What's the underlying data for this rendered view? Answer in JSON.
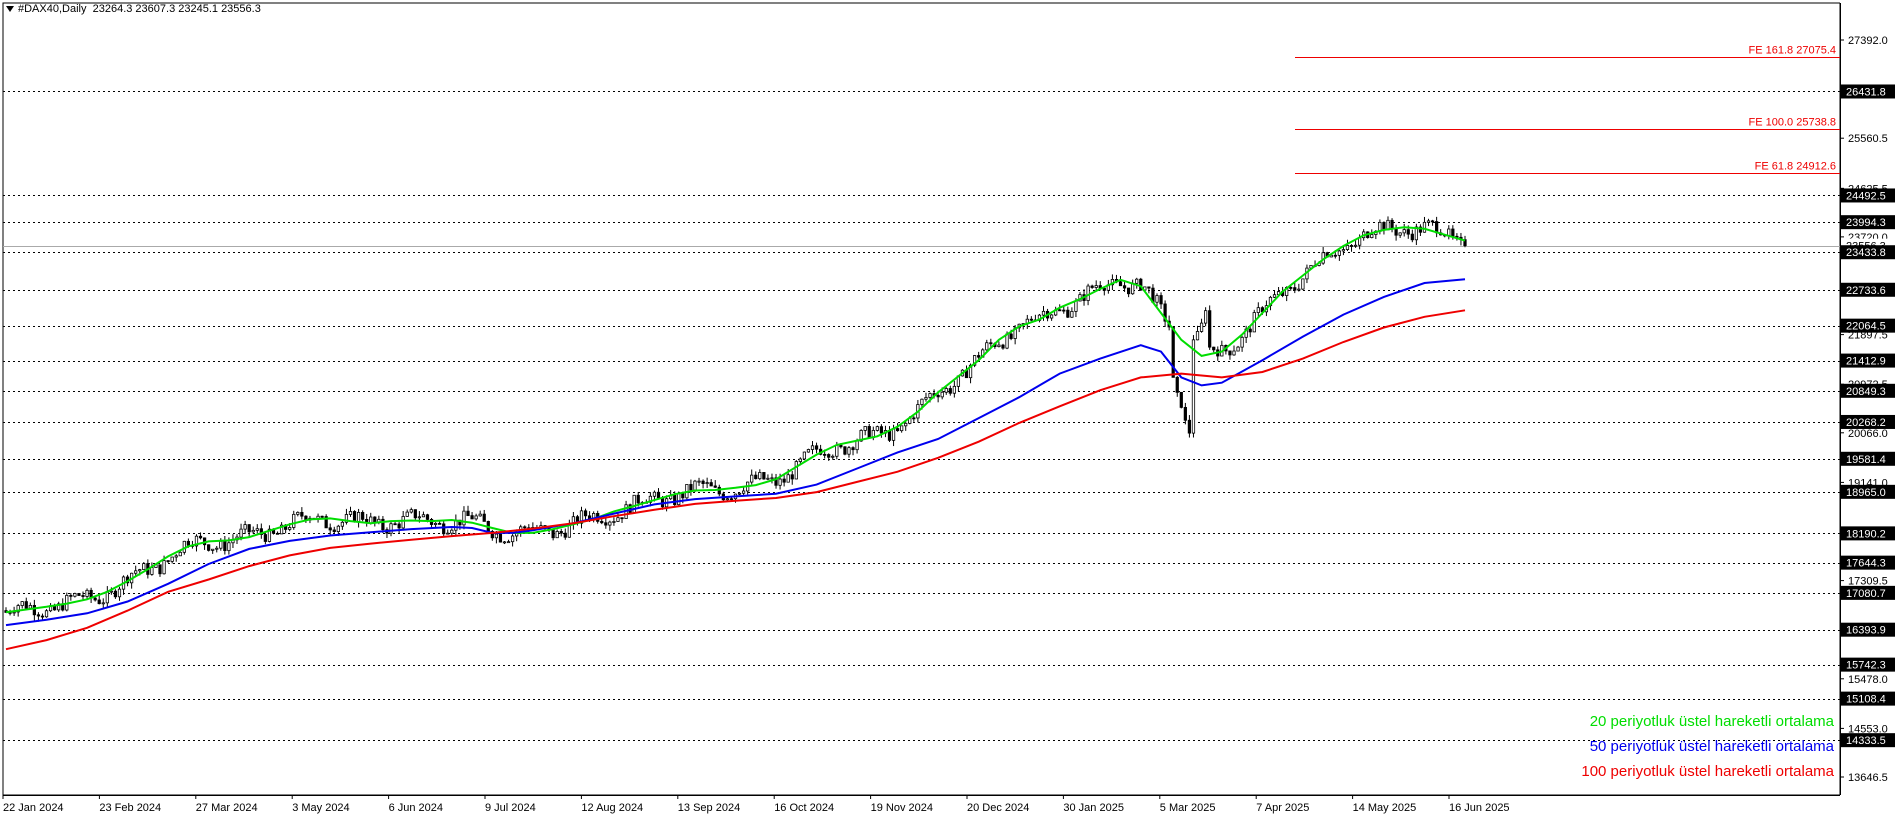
{
  "header": {
    "symbol": "#DAX40,Daily",
    "ohlc": "23264.3 23607.3 23245.1 23556.3"
  },
  "colors": {
    "ema20": "#00dd00",
    "ema50": "#0000ee",
    "ema100": "#ee0000",
    "fib": "#ee0000",
    "grid": "#000000",
    "bull": "#000000",
    "bear": "#000000"
  },
  "chart_data": {
    "type": "candlestick",
    "instrument": "#DAX40",
    "timeframe": "Daily",
    "ylim": [
      13300,
      28100
    ],
    "y_ticks": [
      "27392.0",
      "26431.8",
      "25560.5",
      "24625.5",
      "24492.5",
      "23994.3",
      "23720.0",
      "23556.3",
      "23433.8",
      "22733.6",
      "22064.5",
      "21897.5",
      "21412.9",
      "20972.5",
      "20849.3",
      "20268.2",
      "20066.0",
      "19581.4",
      "19141.0",
      "18965.0",
      "18190.2",
      "17644.3",
      "17309.5",
      "17080.7",
      "16393.9",
      "15742.3",
      "15478.0",
      "15108.4",
      "14553.0",
      "14333.5",
      "13646.5"
    ],
    "x_ticks": [
      "22 Jan 2024",
      "23 Feb 2024",
      "27 Mar 2024",
      "3 May 2024",
      "6 Jun 2024",
      "9 Jul 2024",
      "12 Aug 2024",
      "13 Sep 2024",
      "16 Oct 2024",
      "19 Nov 2024",
      "20 Dec 2024",
      "30 Jan 2025",
      "5 Mar 2025",
      "7 Apr 2025",
      "14 May 2025",
      "16 Jun 2025"
    ],
    "horizontal_levels": [
      {
        "label": "26431.8",
        "value": 26431.8
      },
      {
        "label": "24492.5",
        "value": 24492.5
      },
      {
        "label": "23994.3",
        "value": 23994.3
      },
      {
        "label": "23433.8",
        "value": 23433.8
      },
      {
        "label": "22733.6",
        "value": 22733.6
      },
      {
        "label": "22064.5",
        "value": 22064.5
      },
      {
        "label": "21412.9",
        "value": 21412.9
      },
      {
        "label": "20849.3",
        "value": 20849.3
      },
      {
        "label": "20268.2",
        "value": 20268.2
      },
      {
        "label": "19581.4",
        "value": 19581.4
      },
      {
        "label": "18965.0",
        "value": 18965.0
      },
      {
        "label": "18190.2",
        "value": 18190.2
      },
      {
        "label": "17644.3",
        "value": 17644.3
      },
      {
        "label": "17080.7",
        "value": 17080.7
      },
      {
        "label": "16393.9",
        "value": 16393.9
      },
      {
        "label": "15742.3",
        "value": 15742.3
      },
      {
        "label": "15108.4",
        "value": 15108.4
      },
      {
        "label": "14333.5",
        "value": 14333.5
      }
    ],
    "current_price": {
      "label": "23556.3",
      "value": 23556.3
    },
    "fib_levels": [
      {
        "label": "FE 161.8 27075.4",
        "value": 27075.4
      },
      {
        "label": "FE 100.0 25738.8",
        "value": 25738.8
      },
      {
        "label": "FE 61.8 24912.6",
        "value": 24912.6
      }
    ],
    "series": [
      {
        "name": "20 periyotluk üstel hareketli ortalama",
        "color": "#00dd00",
        "x": [
          0,
          5,
          10,
          15,
          20,
          25,
          30,
          35,
          40,
          45,
          50,
          55,
          60,
          65,
          70,
          75,
          80,
          85,
          90,
          95,
          100,
          105,
          110,
          115,
          120,
          125,
          130,
          135,
          140,
          145,
          150,
          155,
          160,
          165,
          170,
          175,
          180,
          185,
          190,
          195,
          200,
          205,
          210,
          215,
          220,
          225,
          230,
          235,
          240,
          245,
          250,
          255,
          260,
          265,
          270,
          275,
          280,
          285,
          290,
          295,
          300,
          305,
          310,
          315,
          320,
          325,
          330,
          335,
          340,
          345,
          350,
          355,
          360
        ],
        "values": [
          16720,
          16770,
          16820,
          16880,
          16960,
          17100,
          17300,
          17520,
          17760,
          17950,
          18040,
          18060,
          18120,
          18240,
          18360,
          18450,
          18470,
          18420,
          18380,
          18420,
          18430,
          18420,
          18440,
          18390,
          18290,
          18200,
          18200,
          18270,
          18360,
          18460,
          18600,
          18700,
          18810,
          18920,
          18990,
          19000,
          19040,
          19090,
          19200,
          19430,
          19660,
          19840,
          19920,
          20000,
          20180,
          20460,
          20820,
          21120,
          21420,
          21800,
          22050,
          22180,
          22400,
          22560,
          22750,
          22920,
          22800,
          22300,
          21800,
          21500,
          21580,
          21900,
          22300,
          22700,
          23000,
          23300,
          23550,
          23750,
          23850,
          23900,
          23870,
          23760,
          23650
        ]
      },
      {
        "name": "50 periyotluk üstel hareketli ortalama",
        "color": "#0000ee",
        "x": [
          0,
          10,
          20,
          30,
          40,
          50,
          60,
          70,
          80,
          90,
          100,
          110,
          115,
          120,
          125,
          130,
          140,
          150,
          160,
          170,
          180,
          190,
          200,
          210,
          220,
          230,
          240,
          250,
          260,
          270,
          280,
          285,
          290,
          295,
          300,
          310,
          320,
          330,
          340,
          350,
          360
        ],
        "values": [
          16480,
          16580,
          16700,
          16920,
          17250,
          17620,
          17900,
          18050,
          18150,
          18210,
          18270,
          18310,
          18290,
          18200,
          18200,
          18250,
          18380,
          18560,
          18730,
          18830,
          18880,
          18930,
          19100,
          19400,
          19700,
          19950,
          20340,
          20730,
          21170,
          21450,
          21700,
          21580,
          21100,
          20950,
          21000,
          21420,
          21860,
          22270,
          22600,
          22860,
          22930
        ]
      },
      {
        "name": "100 periyotluk üstel hareketli ortalama",
        "color": "#ee0000",
        "x": [
          0,
          10,
          20,
          30,
          40,
          50,
          60,
          70,
          80,
          90,
          100,
          110,
          120,
          130,
          140,
          150,
          160,
          170,
          180,
          190,
          200,
          210,
          220,
          230,
          240,
          250,
          260,
          270,
          280,
          290,
          300,
          310,
          320,
          330,
          340,
          350,
          360
        ],
        "values": [
          16030,
          16200,
          16430,
          16750,
          17100,
          17330,
          17580,
          17780,
          17920,
          18000,
          18070,
          18140,
          18200,
          18280,
          18380,
          18510,
          18630,
          18740,
          18800,
          18850,
          18960,
          19150,
          19340,
          19600,
          19900,
          20250,
          20560,
          20860,
          21100,
          21170,
          21100,
          21200,
          21450,
          21760,
          22030,
          22230,
          22350
        ]
      }
    ],
    "bars": {
      "count": 361,
      "start_price": 16750,
      "end_price": 23556.3
    },
    "legend": [
      "20 periyotluk üstel hareketli ortalama",
      "50 periyotluk üstel hareketli ortalama",
      "100 periyotluk üstel hareketli ortalama"
    ]
  }
}
